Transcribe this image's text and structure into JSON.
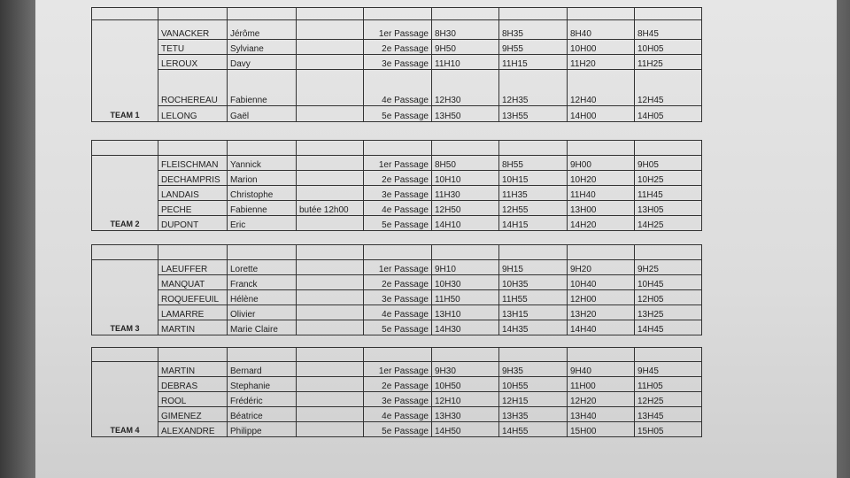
{
  "teams": [
    {
      "name": "TEAM 1",
      "rows": [
        {
          "last": "VANACKER",
          "first": "Jérôme",
          "note": null,
          "passage": "1er Passage",
          "times": [
            "8H30",
            "8H35",
            "8H40",
            "8H45"
          ]
        },
        {
          "last": "TETU",
          "first": "Sylviane",
          "note": null,
          "passage": "2e Passage",
          "times": [
            "9H50",
            "9H55",
            "10H00",
            "10H05"
          ]
        },
        {
          "last": "LEROUX",
          "first": "Davy",
          "note": null,
          "passage": "3e Passage",
          "times": [
            "11H10",
            "11H15",
            "11H20",
            "11H25"
          ]
        },
        {
          "last": "ROCHEREAU",
          "first": "Fabienne",
          "note": null,
          "passage": "4e Passage",
          "times": [
            "12H30",
            "12H35",
            "12H40",
            "12H45"
          ]
        },
        {
          "last": "LELONG",
          "first": "Gaël",
          "note": null,
          "passage": "5e Passage",
          "times": [
            "13H50",
            "13H55",
            "14H00",
            "14H05"
          ]
        }
      ]
    },
    {
      "name": "TEAM 2",
      "rows": [
        {
          "last": "FLEISCHMAN",
          "first": "Yannick",
          "note": null,
          "passage": "1er Passage",
          "times": [
            "8H50",
            "8H55",
            "9H00",
            "9H05"
          ]
        },
        {
          "last": "DECHAMPRIS",
          "first": "Marion",
          "note": null,
          "passage": "2e Passage",
          "times": [
            "10H10",
            "10H15",
            "10H20",
            "10H25"
          ]
        },
        {
          "last": "LANDAIS",
          "first": "Christophe",
          "note": null,
          "passage": "3e Passage",
          "times": [
            "11H30",
            "11H35",
            "11H40",
            "11H45"
          ]
        },
        {
          "last": "PECHE",
          "first": "Fabienne",
          "note": "butée 12h00",
          "passage": "4e Passage",
          "times": [
            "12H50",
            "12H55",
            "13H00",
            "13H05"
          ]
        },
        {
          "last": "DUPONT",
          "first": "Eric",
          "note": null,
          "passage": "5e Passage",
          "times": [
            "14H10",
            "14H15",
            "14H20",
            "14H25"
          ]
        }
      ]
    },
    {
      "name": "TEAM 3",
      "rows": [
        {
          "last": "LAEUFFER",
          "first": "Lorette",
          "note": null,
          "passage": "1er Passage",
          "times": [
            "9H10",
            "9H15",
            "9H20",
            "9H25"
          ]
        },
        {
          "last": "MANQUAT",
          "first": "Franck",
          "note": null,
          "passage": "2e Passage",
          "times": [
            "10H30",
            "10H35",
            "10H40",
            "10H45"
          ]
        },
        {
          "last": "ROQUEFEUIL",
          "first": "Hélène",
          "note": null,
          "passage": "3e Passage",
          "times": [
            "11H50",
            "11H55",
            "12H00",
            "12H05"
          ]
        },
        {
          "last": "LAMARRE",
          "first": "Olivier",
          "note": null,
          "passage": "4e Passage",
          "times": [
            "13H10",
            "13H15",
            "13H20",
            "13H25"
          ]
        },
        {
          "last": "MARTIN",
          "first": "Marie Claire",
          "note": null,
          "passage": "5e Passage",
          "times": [
            "14H30",
            "14H35",
            "14H40",
            "14H45"
          ]
        }
      ]
    },
    {
      "name": "TEAM 4",
      "rows": [
        {
          "last": "MARTIN",
          "first": "Bernard",
          "note": null,
          "passage": "1er Passage",
          "times": [
            "9H30",
            "9H35",
            "9H40",
            "9H45"
          ]
        },
        {
          "last": "DEBRAS",
          "first": "Stephanie",
          "note": null,
          "passage": "2e Passage",
          "times": [
            "10H50",
            "10H55",
            "11H00",
            "11H05"
          ]
        },
        {
          "last": "ROOL",
          "first": "Frédéric",
          "note": null,
          "passage": "3e Passage",
          "times": [
            "12H10",
            "12H15",
            "12H20",
            "12H25"
          ]
        },
        {
          "last": "GIMENEZ",
          "first": "Béatrice",
          "note": null,
          "passage": "4e Passage",
          "times": [
            "13H30",
            "13H35",
            "13H40",
            "13H45"
          ]
        },
        {
          "last": "ALEXANDRE",
          "first": "Philippe",
          "note": null,
          "passage": "5e Passage",
          "times": [
            "14H50",
            "14H55",
            "15H00",
            "15H05"
          ]
        }
      ]
    }
  ]
}
